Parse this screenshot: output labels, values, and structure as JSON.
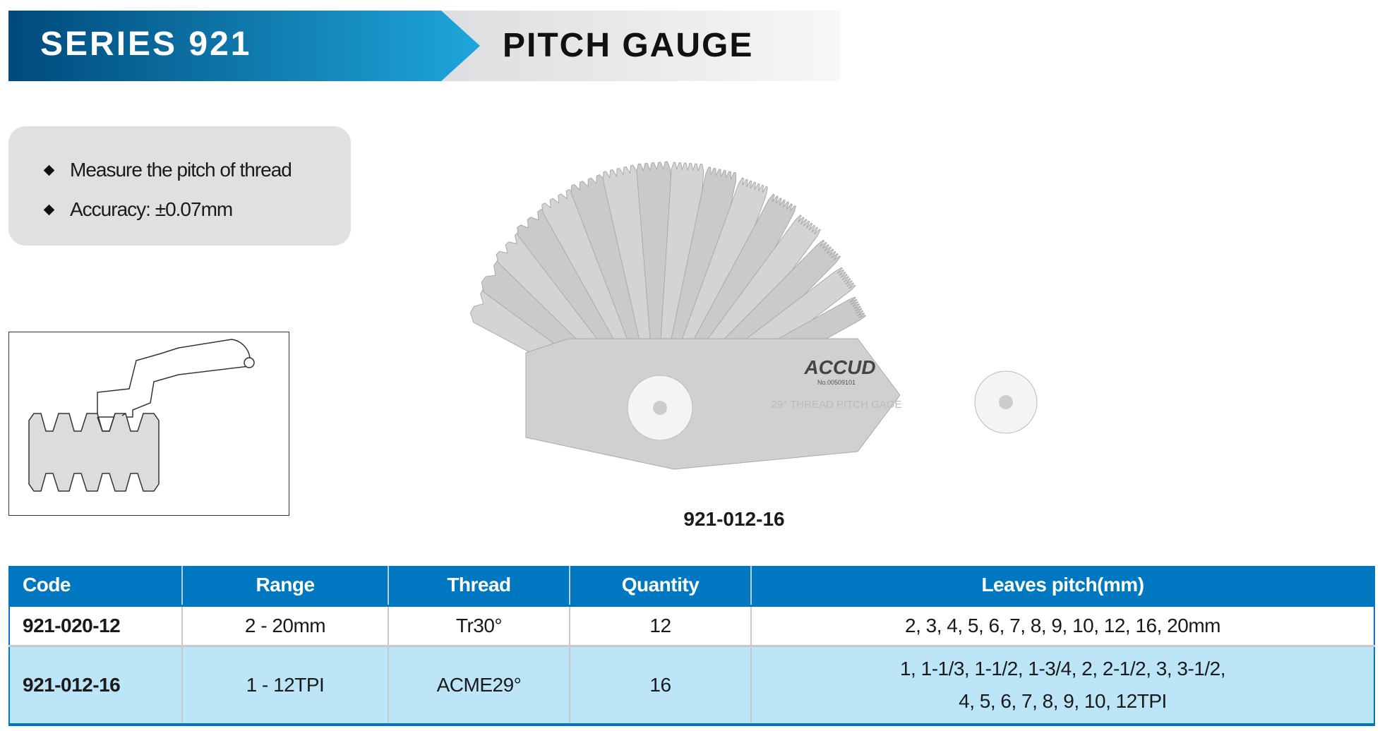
{
  "banner": {
    "series": "SERIES 921",
    "title": "PITCH GAUGE",
    "colors": {
      "blue_dark": "#004a7c",
      "blue_light": "#1ea6da",
      "gray": "#e4e5e7"
    }
  },
  "features": [
    "Measure the pitch of thread",
    "Accuracy: ±0.07mm"
  ],
  "product_image": {
    "brand": "ACCUD",
    "serial": "No.00509101",
    "engraving": "29° THREAD PITCH GAGE"
  },
  "caption": "921-012-16",
  "table": {
    "headers": [
      "Code",
      "Range",
      "Thread",
      "Quantity",
      "Leaves pitch(mm)"
    ],
    "rows": [
      {
        "code": "921-020-12",
        "range": "2 - 20mm",
        "thread": "Tr30°",
        "quantity": "12",
        "pitch": [
          "2, 3, 4, 5, 6, 7, 8, 9, 10, 12, 16, 20mm"
        ]
      },
      {
        "code": "921-012-16",
        "range": "1 - 12TPI",
        "thread": "ACME29°",
        "quantity": "16",
        "pitch": [
          "1, 1-1/3, 1-1/2, 1-3/4, 2, 2-1/2, 3, 3-1/2,",
          "4, 5, 6, 7, 8, 9, 10, 12TPI"
        ]
      }
    ],
    "colors": {
      "header": "#0078c1",
      "row_alt": "#bde5f8"
    }
  }
}
